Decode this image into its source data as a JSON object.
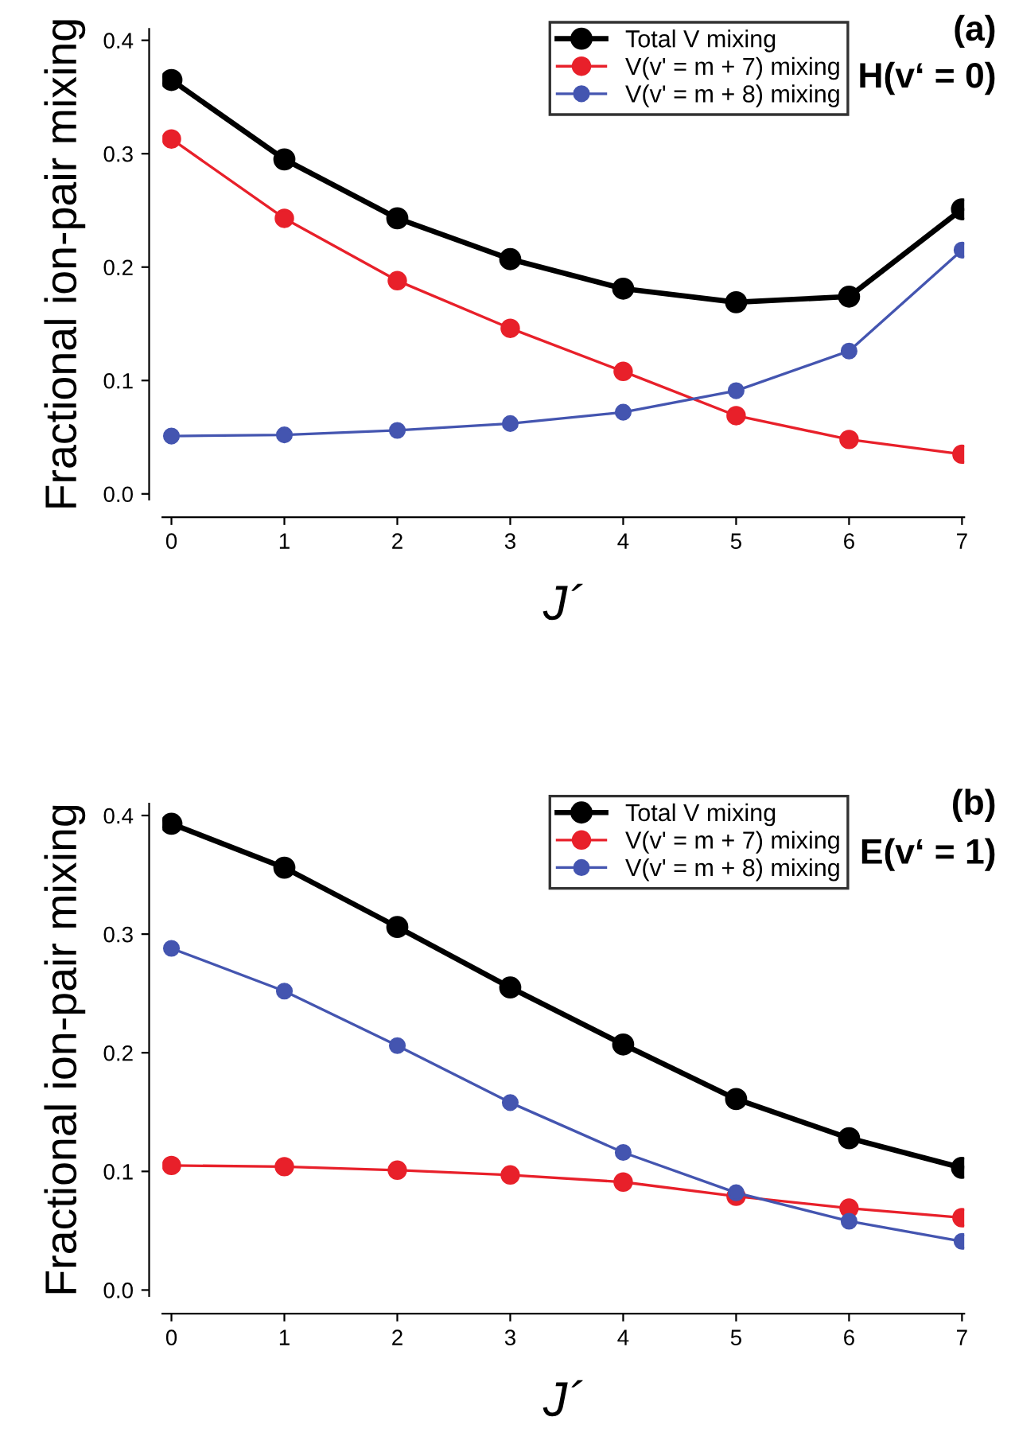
{
  "chart_data": [
    {
      "type": "line",
      "xlabel": "J´",
      "ylabel": "Fractional ion-pair mixing",
      "annotations": [
        "(a)",
        "H(v‘ = 0)"
      ],
      "x": [
        0,
        1,
        2,
        3,
        4,
        5,
        6,
        7
      ],
      "series": [
        {
          "name": "Total V mixing",
          "color": "#000000",
          "values": [
            0.365,
            0.295,
            0.243,
            0.207,
            0.181,
            0.169,
            0.174,
            0.251
          ]
        },
        {
          "name": "V(v' = m + 7) mixing",
          "color": "#e8202a",
          "values": [
            0.313,
            0.243,
            0.188,
            0.146,
            0.108,
            0.069,
            0.048,
            0.035
          ]
        },
        {
          "name": "V(v' = m + 8) mixing",
          "color": "#4455b0",
          "values": [
            0.051,
            0.052,
            0.056,
            0.062,
            0.072,
            0.091,
            0.126,
            0.215
          ]
        }
      ],
      "xlim": [
        -0.08,
        7.02
      ],
      "ylim": [
        -0.005,
        0.41
      ],
      "xticks": [
        0,
        1,
        2,
        3,
        4,
        5,
        6,
        7
      ],
      "yticks": [
        {
          "value": 0,
          "label": "0.0"
        },
        0.1,
        0.2,
        0.3,
        0.4
      ],
      "grid": false,
      "legend": "top right",
      "marker": "circle",
      "line_style": "solid"
    },
    {
      "type": "line",
      "xlabel": "J´",
      "ylabel": "Fractional ion-pair mixing",
      "annotations": [
        "(b)",
        "E(v‘ = 1)"
      ],
      "x": [
        0,
        1,
        2,
        3,
        4,
        5,
        6,
        7
      ],
      "series": [
        {
          "name": "Total V mixing",
          "color": "#000000",
          "values": [
            0.393,
            0.356,
            0.306,
            0.255,
            0.207,
            0.161,
            0.128,
            0.103
          ]
        },
        {
          "name": "V(v' = m + 7) mixing",
          "color": "#e8202a",
          "values": [
            0.105,
            0.104,
            0.101,
            0.097,
            0.091,
            0.079,
            0.069,
            0.061
          ]
        },
        {
          "name": "V(v' = m + 8) mixing",
          "color": "#4455b0",
          "values": [
            0.288,
            0.252,
            0.206,
            0.158,
            0.116,
            0.082,
            0.058,
            0.041
          ]
        }
      ],
      "xlim": [
        -0.08,
        7.02
      ],
      "ylim": [
        -0.005,
        0.41
      ],
      "xticks": [
        0,
        1,
        2,
        3,
        4,
        5,
        6,
        7
      ],
      "yticks": [
        {
          "value": 0,
          "label": "0.0"
        },
        0.1,
        0.2,
        0.3,
        0.4
      ],
      "grid": false,
      "legend": "top right",
      "marker": "circle",
      "line_style": "solid"
    }
  ]
}
